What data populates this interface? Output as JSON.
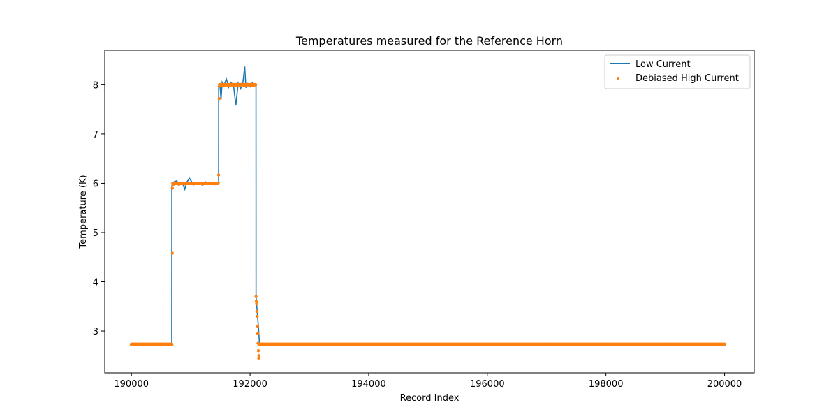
{
  "chart_data": {
    "type": "line",
    "title": "Temperatures measured for the Reference Horn",
    "xlabel": "Record Index",
    "ylabel": "Temperature (K)",
    "xlim": [
      189550,
      200500
    ],
    "ylim": [
      2.15,
      8.7
    ],
    "xticks": [
      190000,
      192000,
      194000,
      196000,
      198000,
      200000
    ],
    "yticks": [
      3,
      4,
      5,
      6,
      7,
      8
    ],
    "legend_position": "top-right",
    "grid": false,
    "series": [
      {
        "name": "Low Current",
        "kind": "line",
        "color": "#1f77b4",
        "x": [
          190000,
          190680,
          190681,
          190700,
          190760,
          190820,
          190850,
          190900,
          190930,
          190980,
          191050,
          191100,
          191150,
          191200,
          191250,
          191300,
          191350,
          191400,
          191470,
          191471,
          191490,
          191510,
          191530,
          191560,
          191600,
          191640,
          191680,
          191720,
          191760,
          191800,
          191840,
          191880,
          191910,
          191930,
          191960,
          192000,
          192040,
          192080,
          192100,
          192101,
          192120,
          192140,
          192160,
          193000,
          196000,
          200000
        ],
        "y": [
          2.73,
          2.73,
          5.95,
          6.02,
          6.05,
          5.98,
          6.03,
          5.88,
          6.02,
          6.1,
          5.97,
          6.02,
          6.0,
          5.96,
          6.03,
          5.99,
          6.01,
          6.0,
          6.0,
          7.95,
          8.02,
          7.7,
          8.05,
          7.98,
          8.12,
          7.95,
          8.04,
          8.0,
          7.58,
          8.03,
          7.92,
          8.05,
          8.37,
          7.94,
          8.02,
          7.96,
          8.04,
          8.0,
          8.0,
          3.7,
          3.4,
          3.1,
          2.73,
          2.73,
          2.73,
          2.73
        ]
      },
      {
        "name": "Debiased High Current",
        "kind": "scatter",
        "color": "#ff7f0e",
        "x": [
          190000,
          190100,
          190200,
          190300,
          190400,
          190500,
          190600,
          190680,
          190690,
          190690,
          190700,
          190720,
          190760,
          190800,
          190850,
          190900,
          190950,
          191000,
          191050,
          191100,
          191150,
          191200,
          191250,
          191300,
          191350,
          191400,
          191460,
          191470,
          191480,
          191480,
          191500,
          191550,
          191600,
          191650,
          191700,
          191750,
          191800,
          191850,
          191900,
          191950,
          192000,
          192050,
          192090,
          192100,
          192105,
          192110,
          192115,
          192120,
          192125,
          192130,
          192135,
          192140,
          192145,
          192150,
          192160,
          192200,
          192500,
          193000,
          194000,
          195000,
          196000,
          197000,
          198000,
          199000,
          200000
        ],
        "y": [
          2.73,
          2.73,
          2.73,
          2.73,
          2.73,
          2.73,
          2.73,
          2.73,
          4.58,
          5.9,
          5.97,
          5.99,
          6.0,
          5.98,
          6.0,
          5.99,
          6.0,
          6.0,
          5.99,
          6.0,
          6.0,
          5.99,
          6.0,
          6.0,
          6.0,
          5.99,
          6.0,
          6.17,
          7.72,
          7.97,
          8.0,
          7.98,
          8.0,
          7.99,
          8.0,
          7.98,
          8.0,
          8.0,
          7.99,
          8.0,
          8.0,
          7.99,
          8.0,
          3.7,
          3.6,
          3.55,
          3.4,
          3.3,
          3.1,
          2.95,
          2.75,
          2.6,
          2.45,
          2.5,
          2.73,
          2.73,
          2.73,
          2.73,
          2.73,
          2.73,
          2.73,
          2.73,
          2.73,
          2.73,
          2.73
        ]
      }
    ]
  }
}
